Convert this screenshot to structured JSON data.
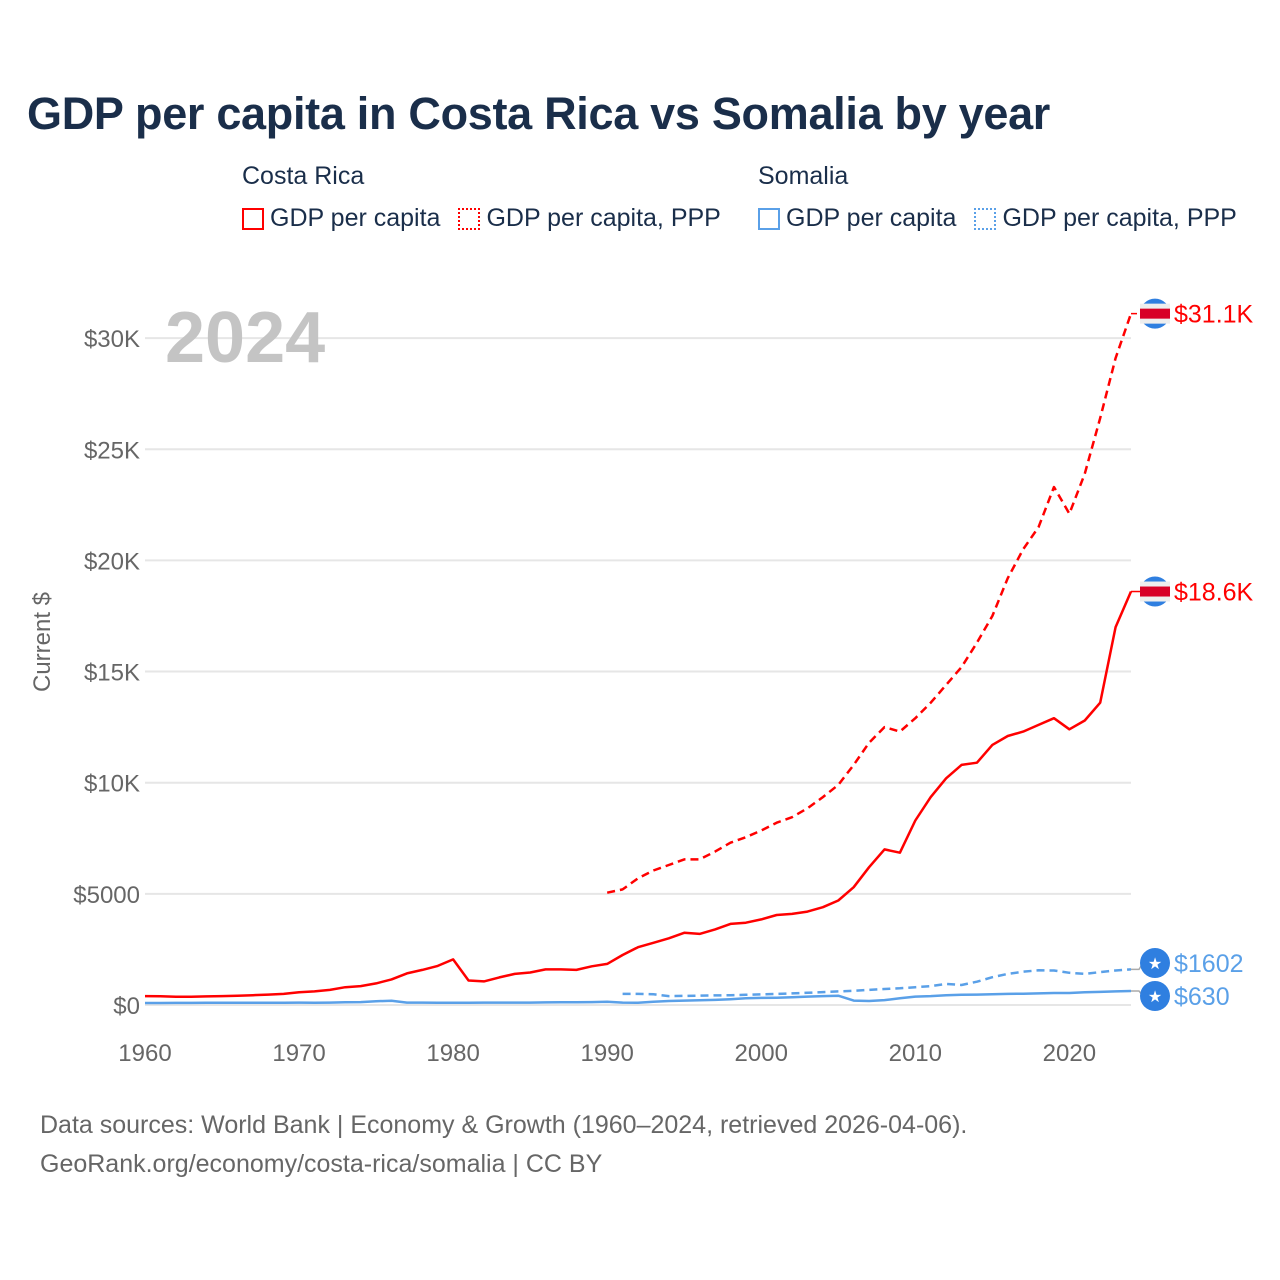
{
  "title": "GDP per capita in Costa Rica vs Somalia by year",
  "legend": [
    {
      "group": "Costa Rica",
      "color": "#ff0000",
      "items": [
        {
          "label": "GDP per capita",
          "style": "solid"
        },
        {
          "label": "GDP per capita, PPP",
          "style": "dotted"
        }
      ]
    },
    {
      "group": "Somalia",
      "color": "#5aa0e8",
      "items": [
        {
          "label": "GDP per capita",
          "style": "solid"
        },
        {
          "label": "GDP per capita, PPP",
          "style": "dotted"
        }
      ]
    }
  ],
  "chart_data": {
    "type": "line",
    "title": "GDP per capita in Costa Rica vs Somalia by year",
    "xlabel": "",
    "ylabel": "Current $",
    "xlim": [
      1960,
      2024
    ],
    "ylim": [
      0,
      32000
    ],
    "x_ticks": [
      1960,
      1970,
      1980,
      1990,
      2000,
      2010,
      2020
    ],
    "x_tick_labels": [
      "1960",
      "1970",
      "1980",
      "1990",
      "2000",
      "2010",
      "2020"
    ],
    "y_ticks": [
      0,
      5000,
      10000,
      15000,
      20000,
      25000,
      30000
    ],
    "y_tick_labels": [
      "$0",
      "$5000",
      "$10K",
      "$15K",
      "$20K",
      "$25K",
      "$30K"
    ],
    "grid": true,
    "year_watermark": "2024",
    "series": [
      {
        "name": "Costa Rica GDP per capita",
        "color": "#ff0000",
        "dash": false,
        "start": 1960,
        "end_label": "$18.6K",
        "marker": "costa-rica-flag",
        "values": [
          400,
          390,
          370,
          375,
          385,
          400,
          420,
          440,
          470,
          500,
          570,
          610,
          680,
          800,
          850,
          970,
          1150,
          1420,
          1580,
          1760,
          2050,
          1100,
          1060,
          1240,
          1400,
          1460,
          1600,
          1600,
          1580,
          1740,
          1850,
          2250,
          2600,
          2800,
          3000,
          3250,
          3200,
          3400,
          3650,
          3700,
          3850,
          4050,
          4100,
          4200,
          4400,
          4700,
          5300,
          6200,
          7000,
          6850,
          8300,
          9350,
          10200,
          10800,
          10900,
          11700,
          12100,
          12300,
          12600,
          12900,
          12400,
          12800,
          13600,
          17000,
          18600
        ]
      },
      {
        "name": "Costa Rica GDP per capita, PPP",
        "color": "#ff0000",
        "dash": true,
        "start": 1990,
        "end_label": "$31.1K",
        "marker": "costa-rica-flag",
        "values": [
          5050,
          5200,
          5700,
          6050,
          6300,
          6550,
          6550,
          6900,
          7300,
          7550,
          7850,
          8200,
          8450,
          8850,
          9350,
          9900,
          10800,
          11800,
          12500,
          12300,
          12900,
          13600,
          14400,
          15200,
          16300,
          17500,
          19200,
          20500,
          21500,
          23300,
          22100,
          23900,
          26400,
          29100,
          31100
        ]
      },
      {
        "name": "Somalia GDP per capita",
        "color": "#5aa0e8",
        "dash": false,
        "start": 1960,
        "end_label": "$630",
        "marker": "somalia-flag",
        "values": [
          90,
          92,
          95,
          95,
          98,
          100,
          100,
          102,
          104,
          105,
          110,
          100,
          110,
          120,
          130,
          170,
          190,
          110,
          110,
          105,
          100,
          105,
          110,
          110,
          110,
          110,
          115,
          120,
          125,
          130,
          150,
          110,
          100,
          150,
          180,
          200,
          210,
          230,
          260,
          300,
          320,
          330,
          350,
          380,
          400,
          420,
          200,
          180,
          220,
          300,
          380,
          400,
          440,
          460,
          470,
          480,
          500,
          510,
          520,
          540,
          540,
          570,
          590,
          610,
          630
        ]
      },
      {
        "name": "Somalia GDP per capita, PPP",
        "color": "#5aa0e8",
        "dash": true,
        "start": 1991,
        "end_label": "$1602",
        "marker": "somalia-flag",
        "values": [
          500,
          500,
          480,
          400,
          410,
          420,
          430,
          440,
          460,
          480,
          500,
          520,
          550,
          580,
          610,
          640,
          680,
          720,
          750,
          800,
          850,
          950,
          900,
          1050,
          1250,
          1400,
          1500,
          1560,
          1550,
          1450,
          1400,
          1480,
          1550,
          1602
        ]
      }
    ]
  },
  "footer": {
    "line1": "Data sources: World Bank | Economy & Growth (1960–2024, retrieved 2026-04-06).",
    "line2": "GeoRank.org/economy/costa-rica/somalia | CC BY"
  }
}
